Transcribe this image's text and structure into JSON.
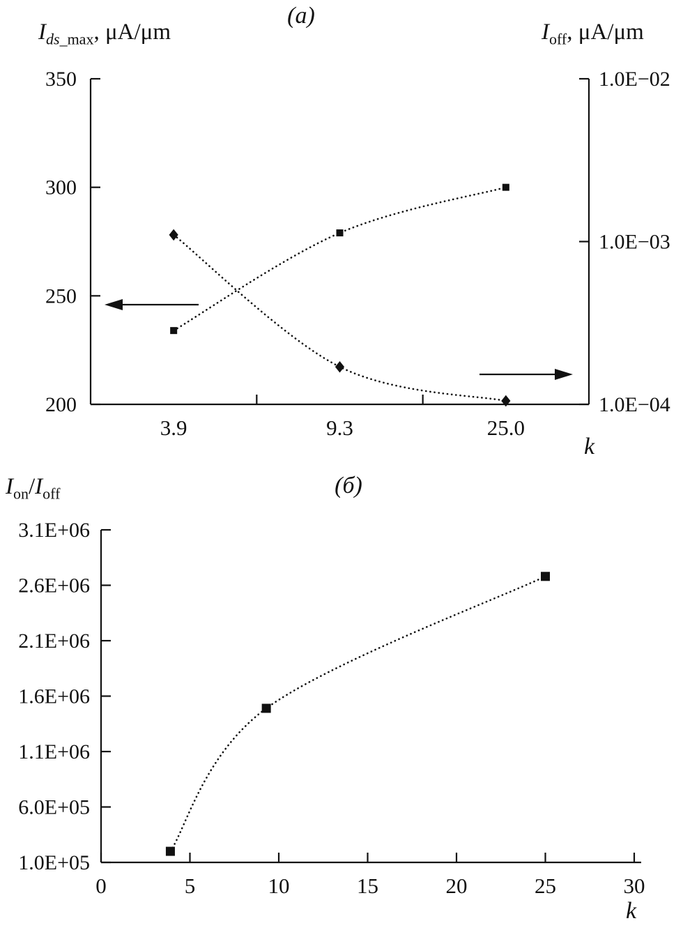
{
  "figure": {
    "background": "#ffffff",
    "ink_color": "#111111"
  },
  "labels": {
    "a_left_axis": {
      "symbol": "I",
      "sub_italic": "ds",
      "sub_roman": "_max",
      "unit": ", μA/μm"
    },
    "a_right_axis": {
      "symbol": "I",
      "sub_italic": "",
      "sub_roman": "off",
      "unit": ", μA/μm"
    },
    "b_y_axis": {
      "num_symbol": "I",
      "num_sub": "on",
      "divider": "/",
      "den_symbol": "I",
      "den_sub": "off"
    }
  },
  "chart_data": [
    {
      "id": "a",
      "type": "line",
      "title": "(a)",
      "xlabel": "k",
      "x_mode": "categorical",
      "categories": [
        "3.9",
        "9.3",
        "25.0"
      ],
      "grid": false,
      "legend": "none",
      "left_axis": {
        "label": "I_ds_max, μA/μm",
        "range": [
          200,
          350
        ],
        "ticks": [
          350,
          300,
          250,
          200
        ]
      },
      "right_axis": {
        "label": "I_off, μA/μm",
        "scale": "log",
        "log_top": -2,
        "decades": 2,
        "ticks": [
          {
            "label": "1.0E−02",
            "value": 0.01
          },
          {
            "label": "1.0E−03",
            "value": 0.001
          },
          {
            "label": "1.0E−04",
            "value": 0.0001
          }
        ]
      },
      "series": [
        {
          "name": "Ids_max",
          "axis": "left",
          "marker": "square",
          "line": "dotted",
          "values": [
            234,
            279,
            300
          ]
        },
        {
          "name": "Ioff",
          "axis": "right",
          "marker": "diamond",
          "line": "dotted",
          "values": [
            0.0011,
            0.00017,
            0.000105
          ]
        }
      ],
      "annotations": [
        {
          "type": "arrow",
          "direction": "left",
          "points_to": "left-axis"
        },
        {
          "type": "arrow",
          "direction": "right",
          "points_to": "right-axis"
        }
      ]
    },
    {
      "id": "b",
      "type": "scatter",
      "title": "(б)",
      "xlabel": "k",
      "ylabel": "I_on/I_off",
      "grid": false,
      "legend": "none",
      "xlim": [
        0,
        30
      ],
      "ylim": [
        100000,
        3100000
      ],
      "x_ticks": [
        0,
        5,
        10,
        15,
        20,
        25,
        30
      ],
      "y_ticks": [
        {
          "label": "3.1E+06",
          "value": 3100000
        },
        {
          "label": "2.6E+06",
          "value": 2600000
        },
        {
          "label": "2.1E+06",
          "value": 2100000
        },
        {
          "label": "1.6E+06",
          "value": 1600000
        },
        {
          "label": "1.1E+06",
          "value": 1100000
        },
        {
          "label": "6.0E+05",
          "value": 600000
        },
        {
          "label": "1.0E+05",
          "value": 100000
        }
      ],
      "series": [
        {
          "name": "Ion/Ioff",
          "marker": "square",
          "line": "dotted",
          "x": [
            3.9,
            9.3,
            25.0
          ],
          "values": [
            200000,
            1490000,
            2680000
          ]
        }
      ]
    }
  ]
}
